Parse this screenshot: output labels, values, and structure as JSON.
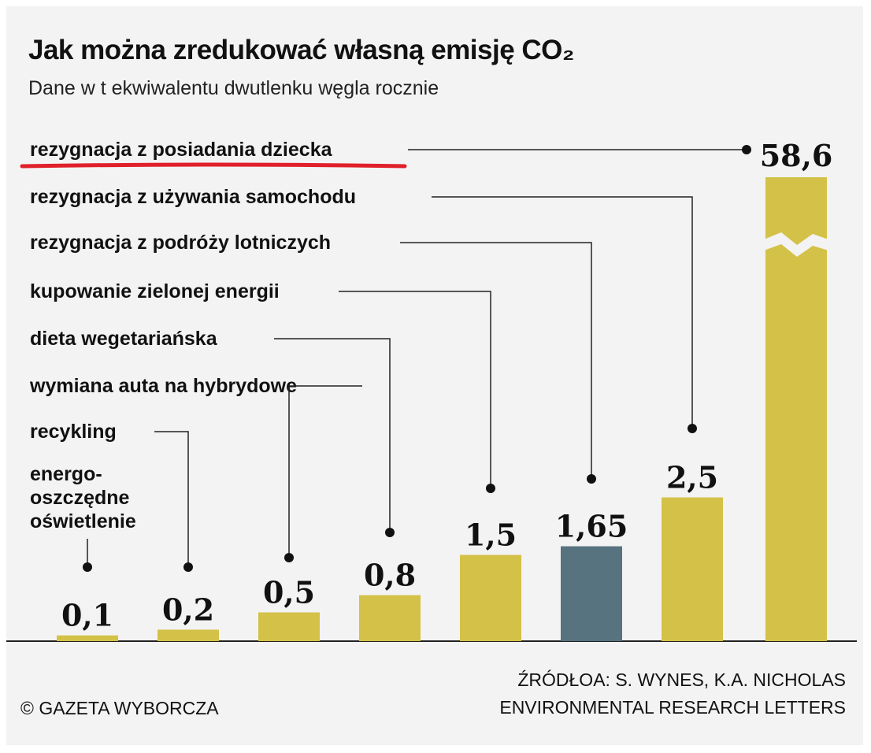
{
  "title": "Jak można zredukować własną emisję CO₂",
  "subtitle": "Dane w t ekwiwalentu dwutlenku węgla rocznie",
  "footer": {
    "copyright": "© GAZETA WYBORCZA",
    "source_line1": "ŹRÓDŁOA: S. WYNES, K.A. NICHOLAS",
    "source_line2": "ENVIRONMENTAL RESEARCH LETTERS"
  },
  "colors": {
    "bar": "#d4c147",
    "highlight_bar": "#56737f",
    "underline": "#e0202a",
    "background": "#f3f3f3"
  },
  "chart_data": {
    "type": "bar",
    "title": "Jak można zredukować własną emisję CO₂",
    "subtitle": "Dane w t ekwiwalentu dwutlenku węgla rocznie",
    "ylabel": "",
    "xlabel": "",
    "axis_break": true,
    "grid": false,
    "categories": [
      "energo-oszczędne oświetlenie",
      "recykling",
      "wymiana auta na hybrydowe",
      "dieta wegetariańska",
      "kupowanie zielonej energii",
      "rezygnacja z podróży lotniczych",
      "rezygnacja z używania samochodu",
      "rezygnacja z posiadania dziecka"
    ],
    "values": [
      0.1,
      0.2,
      0.5,
      0.8,
      1.5,
      1.65,
      2.5,
      58.6
    ],
    "value_labels": [
      "0,1",
      "0,2",
      "0,5",
      "0,8",
      "1,5",
      "1,65",
      "2,5",
      "58,6"
    ],
    "highlighted_index": 5,
    "underlined_index": 7,
    "label_lines": [
      [
        "energo-",
        "oszczędne",
        "oświetlenie"
      ],
      [
        "recykling"
      ],
      [
        "wymiana auta na hybrydowe"
      ],
      [
        "dieta wegetariańska"
      ],
      [
        "kupowanie zielonej energii"
      ],
      [
        "rezygnacja z podróży lotniczych"
      ],
      [
        "rezygnacja z używania samochodu"
      ],
      [
        "rezygnacja z posiadania dziecka"
      ]
    ]
  }
}
